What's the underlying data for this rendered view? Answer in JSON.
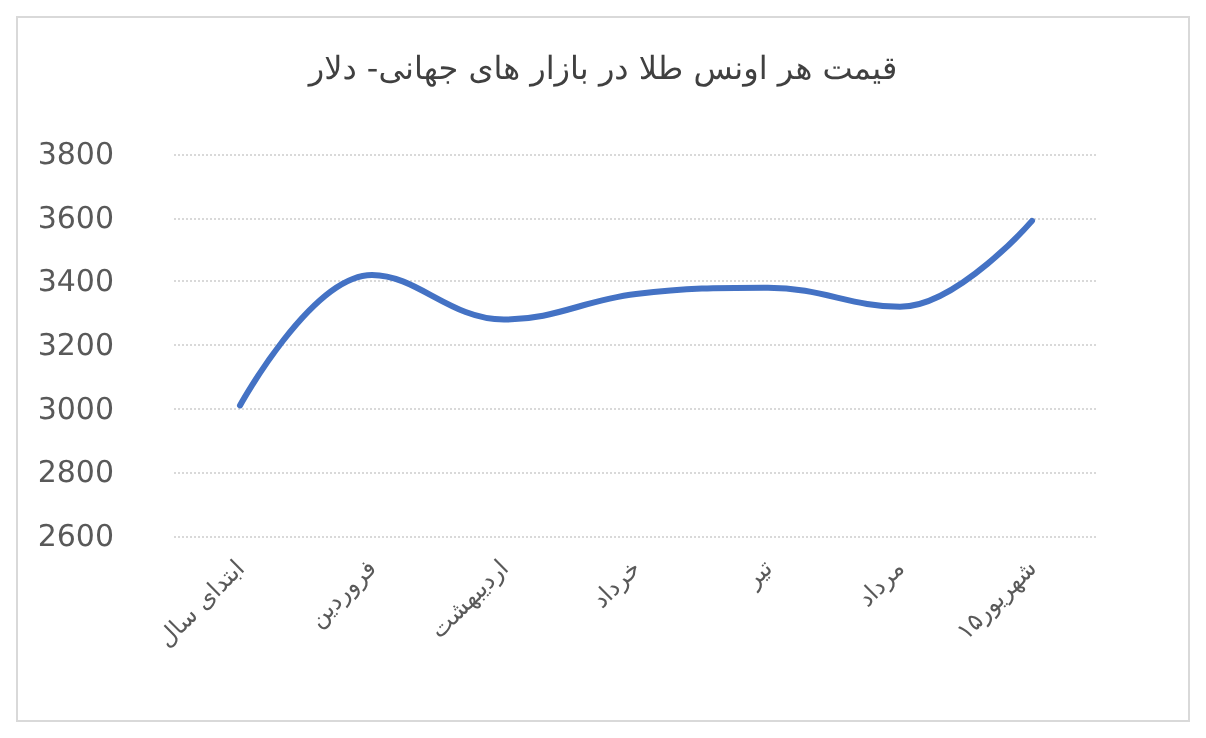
{
  "chart_data": {
    "type": "line",
    "title": "قیمت هر اونس طلا در بازار های جهانی- دلار",
    "categories": [
      "ابتدای سال",
      "فروردین",
      "اردیبهشت",
      "خرداد",
      "تیر",
      "مرداد",
      "۱۵شهریور"
    ],
    "series": [
      {
        "color": "#4472c4",
        "values": [
          3010,
          3420,
          3280,
          3360,
          3380,
          3320,
          3590
        ]
      }
    ],
    "ylim": [
      2600,
      3800
    ],
    "yticks": [
      2600,
      2800,
      3000,
      3200,
      3400,
      3600,
      3800
    ],
    "grid": "y",
    "marker": "none",
    "line_style": "solid"
  }
}
